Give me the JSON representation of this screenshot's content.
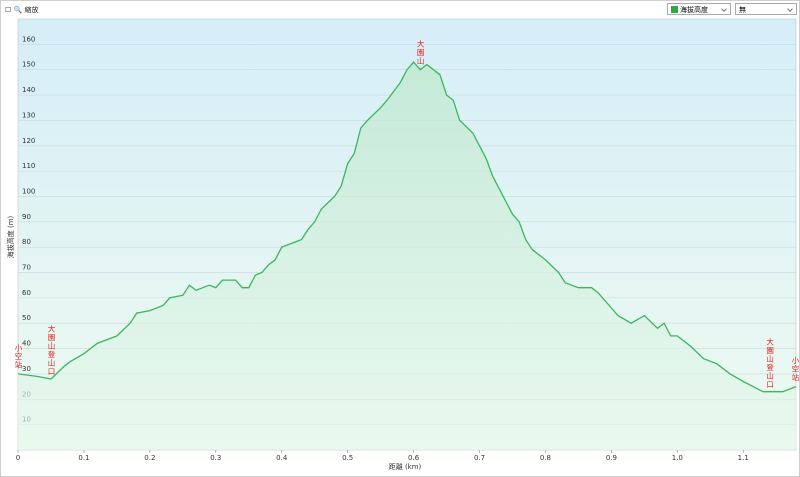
{
  "toolbar": {
    "zoom_label": "縮放",
    "option_select": "無"
  },
  "chart_data": {
    "type": "area",
    "x_label": "距離 (km)",
    "y_label": "海拔高度 (m)",
    "series": [
      {
        "name": "海拔高度",
        "color": "#3cb55e",
        "x": [
          0,
          0.03,
          0.05,
          0.07,
          0.08,
          0.1,
          0.12,
          0.15,
          0.17,
          0.18,
          0.2,
          0.22,
          0.23,
          0.25,
          0.26,
          0.27,
          0.29,
          0.3,
          0.31,
          0.33,
          0.34,
          0.35,
          0.36,
          0.37,
          0.38,
          0.39,
          0.4,
          0.42,
          0.43,
          0.44,
          0.45,
          0.46,
          0.48,
          0.49,
          0.5,
          0.51,
          0.52,
          0.53,
          0.55,
          0.56,
          0.58,
          0.59,
          0.6,
          0.61,
          0.62,
          0.63,
          0.64,
          0.65,
          0.66,
          0.67,
          0.69,
          0.7,
          0.71,
          0.72,
          0.73,
          0.75,
          0.76,
          0.77,
          0.78,
          0.8,
          0.82,
          0.83,
          0.85,
          0.87,
          0.88,
          0.9,
          0.91,
          0.93,
          0.95,
          0.97,
          0.98,
          0.99,
          1.0,
          1.02,
          1.04,
          1.06,
          1.08,
          1.1,
          1.13,
          1.16,
          1.18
        ],
        "values": [
          30,
          29,
          28,
          33,
          35,
          38,
          42,
          45,
          50,
          54,
          55,
          57,
          60,
          61,
          65,
          63,
          65,
          64,
          67,
          67,
          64,
          64,
          69,
          70,
          73,
          75,
          80,
          82,
          83,
          87,
          90,
          95,
          100,
          104,
          113,
          117,
          127,
          130,
          135,
          138,
          145,
          150,
          153,
          150,
          152,
          150,
          148,
          140,
          138,
          130,
          125,
          120,
          115,
          108,
          103,
          93,
          90,
          83,
          79,
          75,
          70,
          66,
          64,
          64,
          62,
          56,
          53,
          50,
          53,
          48,
          50,
          45,
          45,
          41,
          36,
          34,
          30,
          27,
          23,
          23,
          25
        ]
      }
    ],
    "annotations": [
      {
        "x": 0,
        "text": "小空站"
      },
      {
        "x": 0.05,
        "text": "大園山登山口"
      },
      {
        "x": 0.61,
        "text": "大園山"
      },
      {
        "x": 1.14,
        "text": "大園山登山口"
      },
      {
        "x": 1.18,
        "text": "小空站"
      }
    ],
    "annotation_color": "#e02020",
    "xlim": [
      0,
      1.18
    ],
    "xticks": [
      0,
      {
        "value": 0.1,
        "label": "0.1"
      },
      {
        "value": 0.2,
        "label": "0.2"
      },
      {
        "value": 0.3,
        "label": "0.3"
      },
      {
        "value": 0.4,
        "label": "0.4"
      },
      {
        "value": 0.5,
        "label": "0.5"
      },
      {
        "value": 0.6,
        "label": "0.6"
      },
      {
        "value": 0.7,
        "label": "0.7"
      },
      {
        "value": 0.8,
        "label": "0.8"
      },
      {
        "value": 0.9,
        "label": "0.9"
      },
      {
        "value": 1.0,
        "label": "1.0"
      },
      {
        "value": 1.1,
        "label": "1.1"
      }
    ],
    "ylim": [
      0,
      170
    ],
    "yticks": [
      10,
      20,
      30,
      40,
      50,
      60,
      70,
      80,
      90,
      100,
      110,
      120,
      130,
      140,
      150,
      160
    ],
    "grid": true
  }
}
